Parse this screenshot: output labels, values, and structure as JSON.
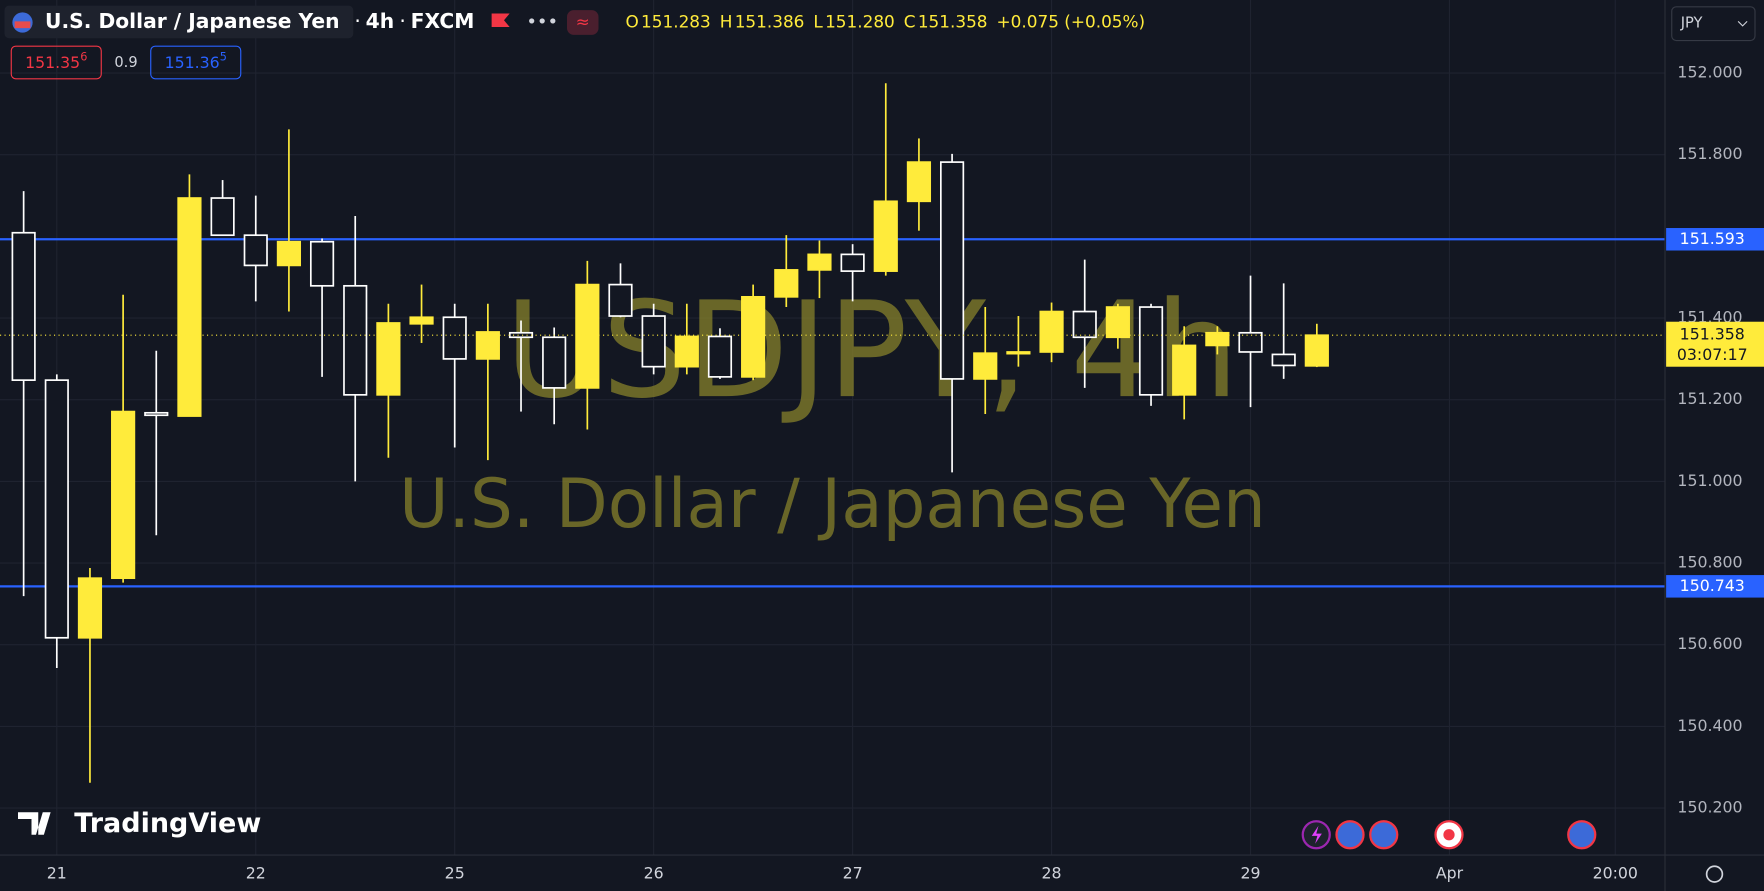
{
  "chart_data": {
    "type": "candlestick",
    "symbol_name": "U.S. Dollar / Japanese Yen",
    "interval": "4h",
    "exchange": "FXCM",
    "ohlc_header": {
      "o_label": "O",
      "o": "151.283",
      "h_label": "H",
      "h": "151.386",
      "l_label": "L",
      "l": "151.280",
      "c_label": "C",
      "c": "151.358",
      "change": "+0.075 (+0.05%)"
    },
    "sell": {
      "main": "151.35",
      "pip": "6"
    },
    "spread": "0.9",
    "buy": {
      "main": "151.36",
      "pip": "5"
    },
    "currency": "JPY",
    "watermark": "USDJPY, 4h",
    "watermark_sub": "U.S. Dollar / Japanese Yen",
    "logo": "TradingView",
    "up_color": "#ffeb3b",
    "down_color": "#ffffff",
    "grid": true,
    "x": [
      0,
      1,
      2,
      3,
      4,
      5,
      6,
      7,
      8,
      9,
      10,
      11,
      12,
      13,
      14,
      15,
      16,
      17,
      18,
      19,
      20,
      21,
      22,
      23,
      24,
      25,
      26,
      27,
      28,
      29,
      30,
      31,
      32,
      33,
      34,
      35,
      36,
      37,
      38,
      39
    ],
    "open": [
      151.609,
      151.248,
      150.617,
      150.763,
      151.168,
      151.16,
      151.694,
      151.603,
      151.529,
      151.587,
      151.479,
      151.212,
      151.386,
      151.402,
      151.3,
      151.364,
      151.353,
      151.229,
      151.482,
      151.405,
      151.281,
      151.355,
      151.256,
      151.452,
      151.518,
      151.556,
      151.515,
      151.686,
      151.782,
      151.251,
      151.314,
      151.317,
      151.416,
      151.353,
      151.427,
      151.212,
      151.333,
      151.364,
      151.311,
      151.283
    ],
    "high": [
      151.711,
      151.262,
      150.788,
      151.457,
      151.32,
      151.752,
      151.738,
      151.7,
      151.862,
      151.595,
      151.65,
      151.435,
      151.482,
      151.435,
      151.435,
      151.394,
      151.377,
      151.54,
      151.534,
      151.435,
      151.435,
      151.375,
      151.482,
      151.603,
      151.59,
      151.581,
      151.975,
      151.84,
      151.802,
      151.427,
      151.405,
      151.438,
      151.543,
      151.435,
      151.435,
      151.38,
      151.38,
      151.504,
      151.485,
      151.386
    ],
    "low": [
      150.719,
      150.543,
      150.262,
      150.752,
      150.868,
      151.16,
      151.603,
      151.441,
      151.416,
      151.256,
      151.0,
      151.058,
      151.339,
      151.083,
      151.052,
      151.171,
      151.14,
      151.127,
      151.402,
      151.262,
      151.262,
      151.251,
      151.248,
      151.427,
      151.449,
      151.441,
      151.504,
      151.614,
      151.022,
      151.165,
      151.281,
      151.292,
      151.229,
      151.325,
      151.185,
      151.152,
      151.311,
      151.182,
      151.251,
      151.28
    ],
    "close": [
      151.248,
      150.617,
      150.763,
      151.171,
      151.162,
      151.694,
      151.603,
      151.529,
      151.587,
      151.479,
      151.212,
      151.388,
      151.402,
      151.3,
      151.366,
      151.353,
      151.229,
      151.482,
      151.405,
      151.281,
      151.355,
      151.256,
      151.452,
      151.518,
      151.556,
      151.515,
      151.686,
      151.782,
      151.251,
      151.314,
      151.317,
      151.416,
      151.353,
      151.427,
      151.212,
      151.333,
      151.364,
      151.317,
      151.284,
      151.358
    ],
    "xlim": [
      -0.713,
      49.5
    ],
    "ylim": [
      150.085,
      152.179
    ],
    "xticks": [
      {
        "value": 1,
        "label": "21"
      },
      {
        "value": 7,
        "label": "22"
      },
      {
        "value": 13,
        "label": "25"
      },
      {
        "value": 19,
        "label": "26"
      },
      {
        "value": 25,
        "label": "27"
      },
      {
        "value": 31,
        "label": "28"
      },
      {
        "value": 37,
        "label": "29"
      },
      {
        "value": 43,
        "label": "Apr"
      },
      {
        "value": 48,
        "label": "20:00"
      }
    ],
    "yticks": [
      {
        "value": 150.2,
        "label": "150.200"
      },
      {
        "value": 150.4,
        "label": "150.400"
      },
      {
        "value": 150.6,
        "label": "150.600"
      },
      {
        "value": 150.8,
        "label": "150.800"
      },
      {
        "value": 151.0,
        "label": "151.000"
      },
      {
        "value": 151.2,
        "label": "151.200"
      },
      {
        "value": 151.4,
        "label": "151.400"
      },
      {
        "value": 151.8,
        "label": "151.800"
      },
      {
        "value": 152.0,
        "label": "152.000"
      }
    ],
    "hlines": [
      {
        "value": 151.593,
        "color": "#2962ff"
      },
      {
        "value": 150.743,
        "color": "#2962ff"
      }
    ],
    "last_price": {
      "value": 151.358,
      "countdown": "03:07:17",
      "color": "#ffeb3b"
    }
  }
}
